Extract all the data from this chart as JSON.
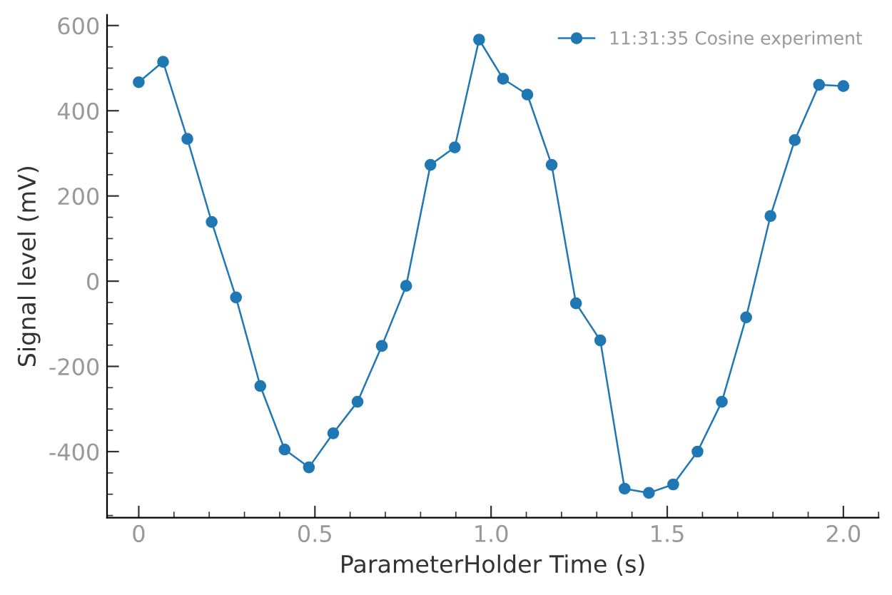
{
  "chart_data": {
    "type": "line",
    "xlabel": "ParameterHolder Time (s)",
    "ylabel": "Signal level (mV)",
    "x": [
      0,
      0.069,
      0.138,
      0.207,
      0.276,
      0.345,
      0.414,
      0.483,
      0.552,
      0.621,
      0.69,
      0.759,
      0.828,
      0.897,
      0.966,
      1.034,
      1.103,
      1.172,
      1.241,
      1.31,
      1.379,
      1.448,
      1.517,
      1.586,
      1.655,
      1.724,
      1.793,
      1.862,
      1.931,
      2.0
    ],
    "series": [
      {
        "name": "11:31:35 Cosine experiment",
        "color": "#1f77b4",
        "values": [
          467,
          515,
          334,
          139,
          -38,
          -246,
          -395,
          -437,
          -357,
          -283,
          -152,
          -11,
          273,
          314,
          567,
          475,
          438,
          273,
          -52,
          -139,
          -487,
          -497,
          -477,
          -400,
          -283,
          -85,
          153,
          331,
          461,
          458
        ]
      }
    ],
    "xlim": [
      -0.09,
      2.1
    ],
    "ylim": [
      -555,
      625
    ],
    "xticks": [
      0,
      0.5,
      {
        "value": 1,
        "label": "1.0"
      },
      1.5,
      {
        "value": 2,
        "label": "2.0"
      }
    ],
    "yticks": [
      -400,
      -200,
      0,
      200,
      400,
      600
    ],
    "marker": "circle",
    "line_style": "solid",
    "grid": false,
    "legend": "top right"
  }
}
